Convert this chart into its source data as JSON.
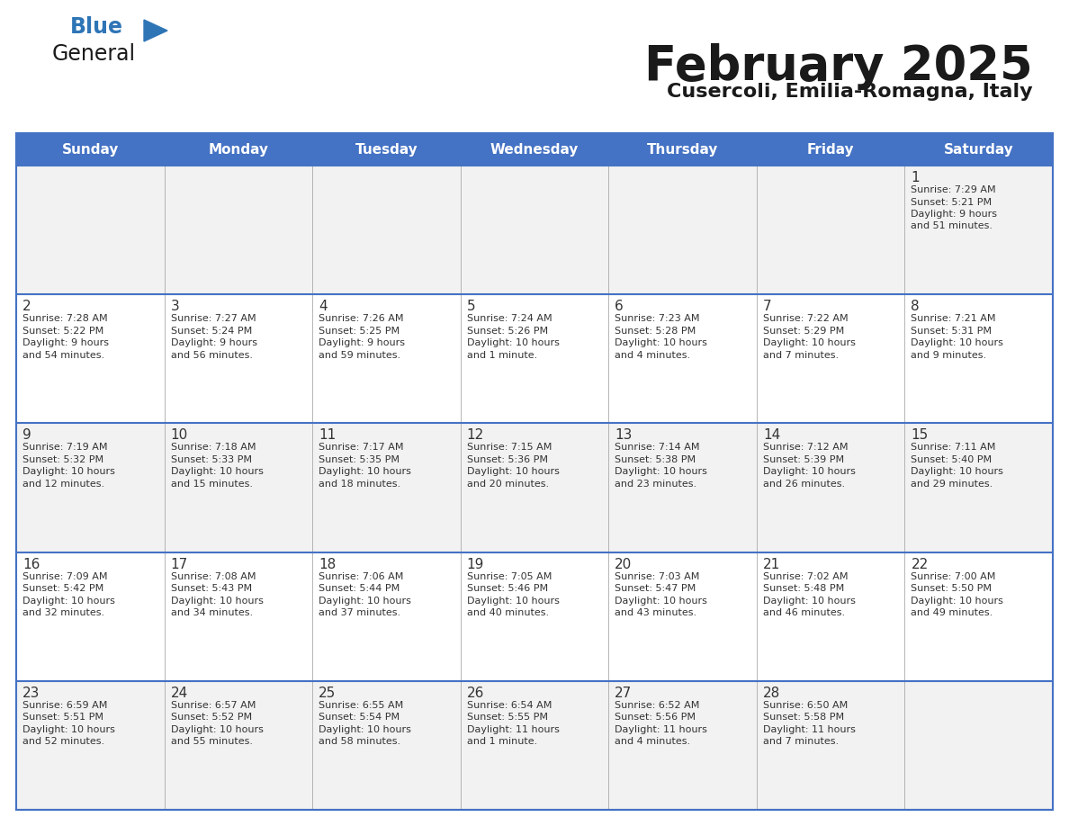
{
  "title": "February 2025",
  "subtitle": "Cusercoli, Emilia-Romagna, Italy",
  "header_color": "#4472C4",
  "header_text_color": "#FFFFFF",
  "header_days": [
    "Sunday",
    "Monday",
    "Tuesday",
    "Wednesday",
    "Thursday",
    "Friday",
    "Saturday"
  ],
  "bg_color": "#FFFFFF",
  "row0_color": "#F2F2F2",
  "row1_color": "#FFFFFF",
  "row2_color": "#F2F2F2",
  "row3_color": "#FFFFFF",
  "row4_color": "#F2F2F2",
  "border_color": "#4472C4",
  "title_color": "#1a1a1a",
  "subtitle_color": "#1a1a1a",
  "cell_text_color": "#333333",
  "day_num_color": "#333333",
  "logo_general_color": "#1a1a1a",
  "logo_blue_color": "#2E75B6",
  "days": [
    {
      "day": 1,
      "col": 6,
      "row": 0,
      "sunrise": "7:29 AM",
      "sunset": "5:21 PM",
      "daylight": "9 hours and 51 minutes."
    },
    {
      "day": 2,
      "col": 0,
      "row": 1,
      "sunrise": "7:28 AM",
      "sunset": "5:22 PM",
      "daylight": "9 hours and 54 minutes."
    },
    {
      "day": 3,
      "col": 1,
      "row": 1,
      "sunrise": "7:27 AM",
      "sunset": "5:24 PM",
      "daylight": "9 hours and 56 minutes."
    },
    {
      "day": 4,
      "col": 2,
      "row": 1,
      "sunrise": "7:26 AM",
      "sunset": "5:25 PM",
      "daylight": "9 hours and 59 minutes."
    },
    {
      "day": 5,
      "col": 3,
      "row": 1,
      "sunrise": "7:24 AM",
      "sunset": "5:26 PM",
      "daylight": "10 hours and 1 minute."
    },
    {
      "day": 6,
      "col": 4,
      "row": 1,
      "sunrise": "7:23 AM",
      "sunset": "5:28 PM",
      "daylight": "10 hours and 4 minutes."
    },
    {
      "day": 7,
      "col": 5,
      "row": 1,
      "sunrise": "7:22 AM",
      "sunset": "5:29 PM",
      "daylight": "10 hours and 7 minutes."
    },
    {
      "day": 8,
      "col": 6,
      "row": 1,
      "sunrise": "7:21 AM",
      "sunset": "5:31 PM",
      "daylight": "10 hours and 9 minutes."
    },
    {
      "day": 9,
      "col": 0,
      "row": 2,
      "sunrise": "7:19 AM",
      "sunset": "5:32 PM",
      "daylight": "10 hours and 12 minutes."
    },
    {
      "day": 10,
      "col": 1,
      "row": 2,
      "sunrise": "7:18 AM",
      "sunset": "5:33 PM",
      "daylight": "10 hours and 15 minutes."
    },
    {
      "day": 11,
      "col": 2,
      "row": 2,
      "sunrise": "7:17 AM",
      "sunset": "5:35 PM",
      "daylight": "10 hours and 18 minutes."
    },
    {
      "day": 12,
      "col": 3,
      "row": 2,
      "sunrise": "7:15 AM",
      "sunset": "5:36 PM",
      "daylight": "10 hours and 20 minutes."
    },
    {
      "day": 13,
      "col": 4,
      "row": 2,
      "sunrise": "7:14 AM",
      "sunset": "5:38 PM",
      "daylight": "10 hours and 23 minutes."
    },
    {
      "day": 14,
      "col": 5,
      "row": 2,
      "sunrise": "7:12 AM",
      "sunset": "5:39 PM",
      "daylight": "10 hours and 26 minutes."
    },
    {
      "day": 15,
      "col": 6,
      "row": 2,
      "sunrise": "7:11 AM",
      "sunset": "5:40 PM",
      "daylight": "10 hours and 29 minutes."
    },
    {
      "day": 16,
      "col": 0,
      "row": 3,
      "sunrise": "7:09 AM",
      "sunset": "5:42 PM",
      "daylight": "10 hours and 32 minutes."
    },
    {
      "day": 17,
      "col": 1,
      "row": 3,
      "sunrise": "7:08 AM",
      "sunset": "5:43 PM",
      "daylight": "10 hours and 34 minutes."
    },
    {
      "day": 18,
      "col": 2,
      "row": 3,
      "sunrise": "7:06 AM",
      "sunset": "5:44 PM",
      "daylight": "10 hours and 37 minutes."
    },
    {
      "day": 19,
      "col": 3,
      "row": 3,
      "sunrise": "7:05 AM",
      "sunset": "5:46 PM",
      "daylight": "10 hours and 40 minutes."
    },
    {
      "day": 20,
      "col": 4,
      "row": 3,
      "sunrise": "7:03 AM",
      "sunset": "5:47 PM",
      "daylight": "10 hours and 43 minutes."
    },
    {
      "day": 21,
      "col": 5,
      "row": 3,
      "sunrise": "7:02 AM",
      "sunset": "5:48 PM",
      "daylight": "10 hours and 46 minutes."
    },
    {
      "day": 22,
      "col": 6,
      "row": 3,
      "sunrise": "7:00 AM",
      "sunset": "5:50 PM",
      "daylight": "10 hours and 49 minutes."
    },
    {
      "day": 23,
      "col": 0,
      "row": 4,
      "sunrise": "6:59 AM",
      "sunset": "5:51 PM",
      "daylight": "10 hours and 52 minutes."
    },
    {
      "day": 24,
      "col": 1,
      "row": 4,
      "sunrise": "6:57 AM",
      "sunset": "5:52 PM",
      "daylight": "10 hours and 55 minutes."
    },
    {
      "day": 25,
      "col": 2,
      "row": 4,
      "sunrise": "6:55 AM",
      "sunset": "5:54 PM",
      "daylight": "10 hours and 58 minutes."
    },
    {
      "day": 26,
      "col": 3,
      "row": 4,
      "sunrise": "6:54 AM",
      "sunset": "5:55 PM",
      "daylight": "11 hours and 1 minute."
    },
    {
      "day": 27,
      "col": 4,
      "row": 4,
      "sunrise": "6:52 AM",
      "sunset": "5:56 PM",
      "daylight": "11 hours and 4 minutes."
    },
    {
      "day": 28,
      "col": 5,
      "row": 4,
      "sunrise": "6:50 AM",
      "sunset": "5:58 PM",
      "daylight": "11 hours and 7 minutes."
    }
  ]
}
